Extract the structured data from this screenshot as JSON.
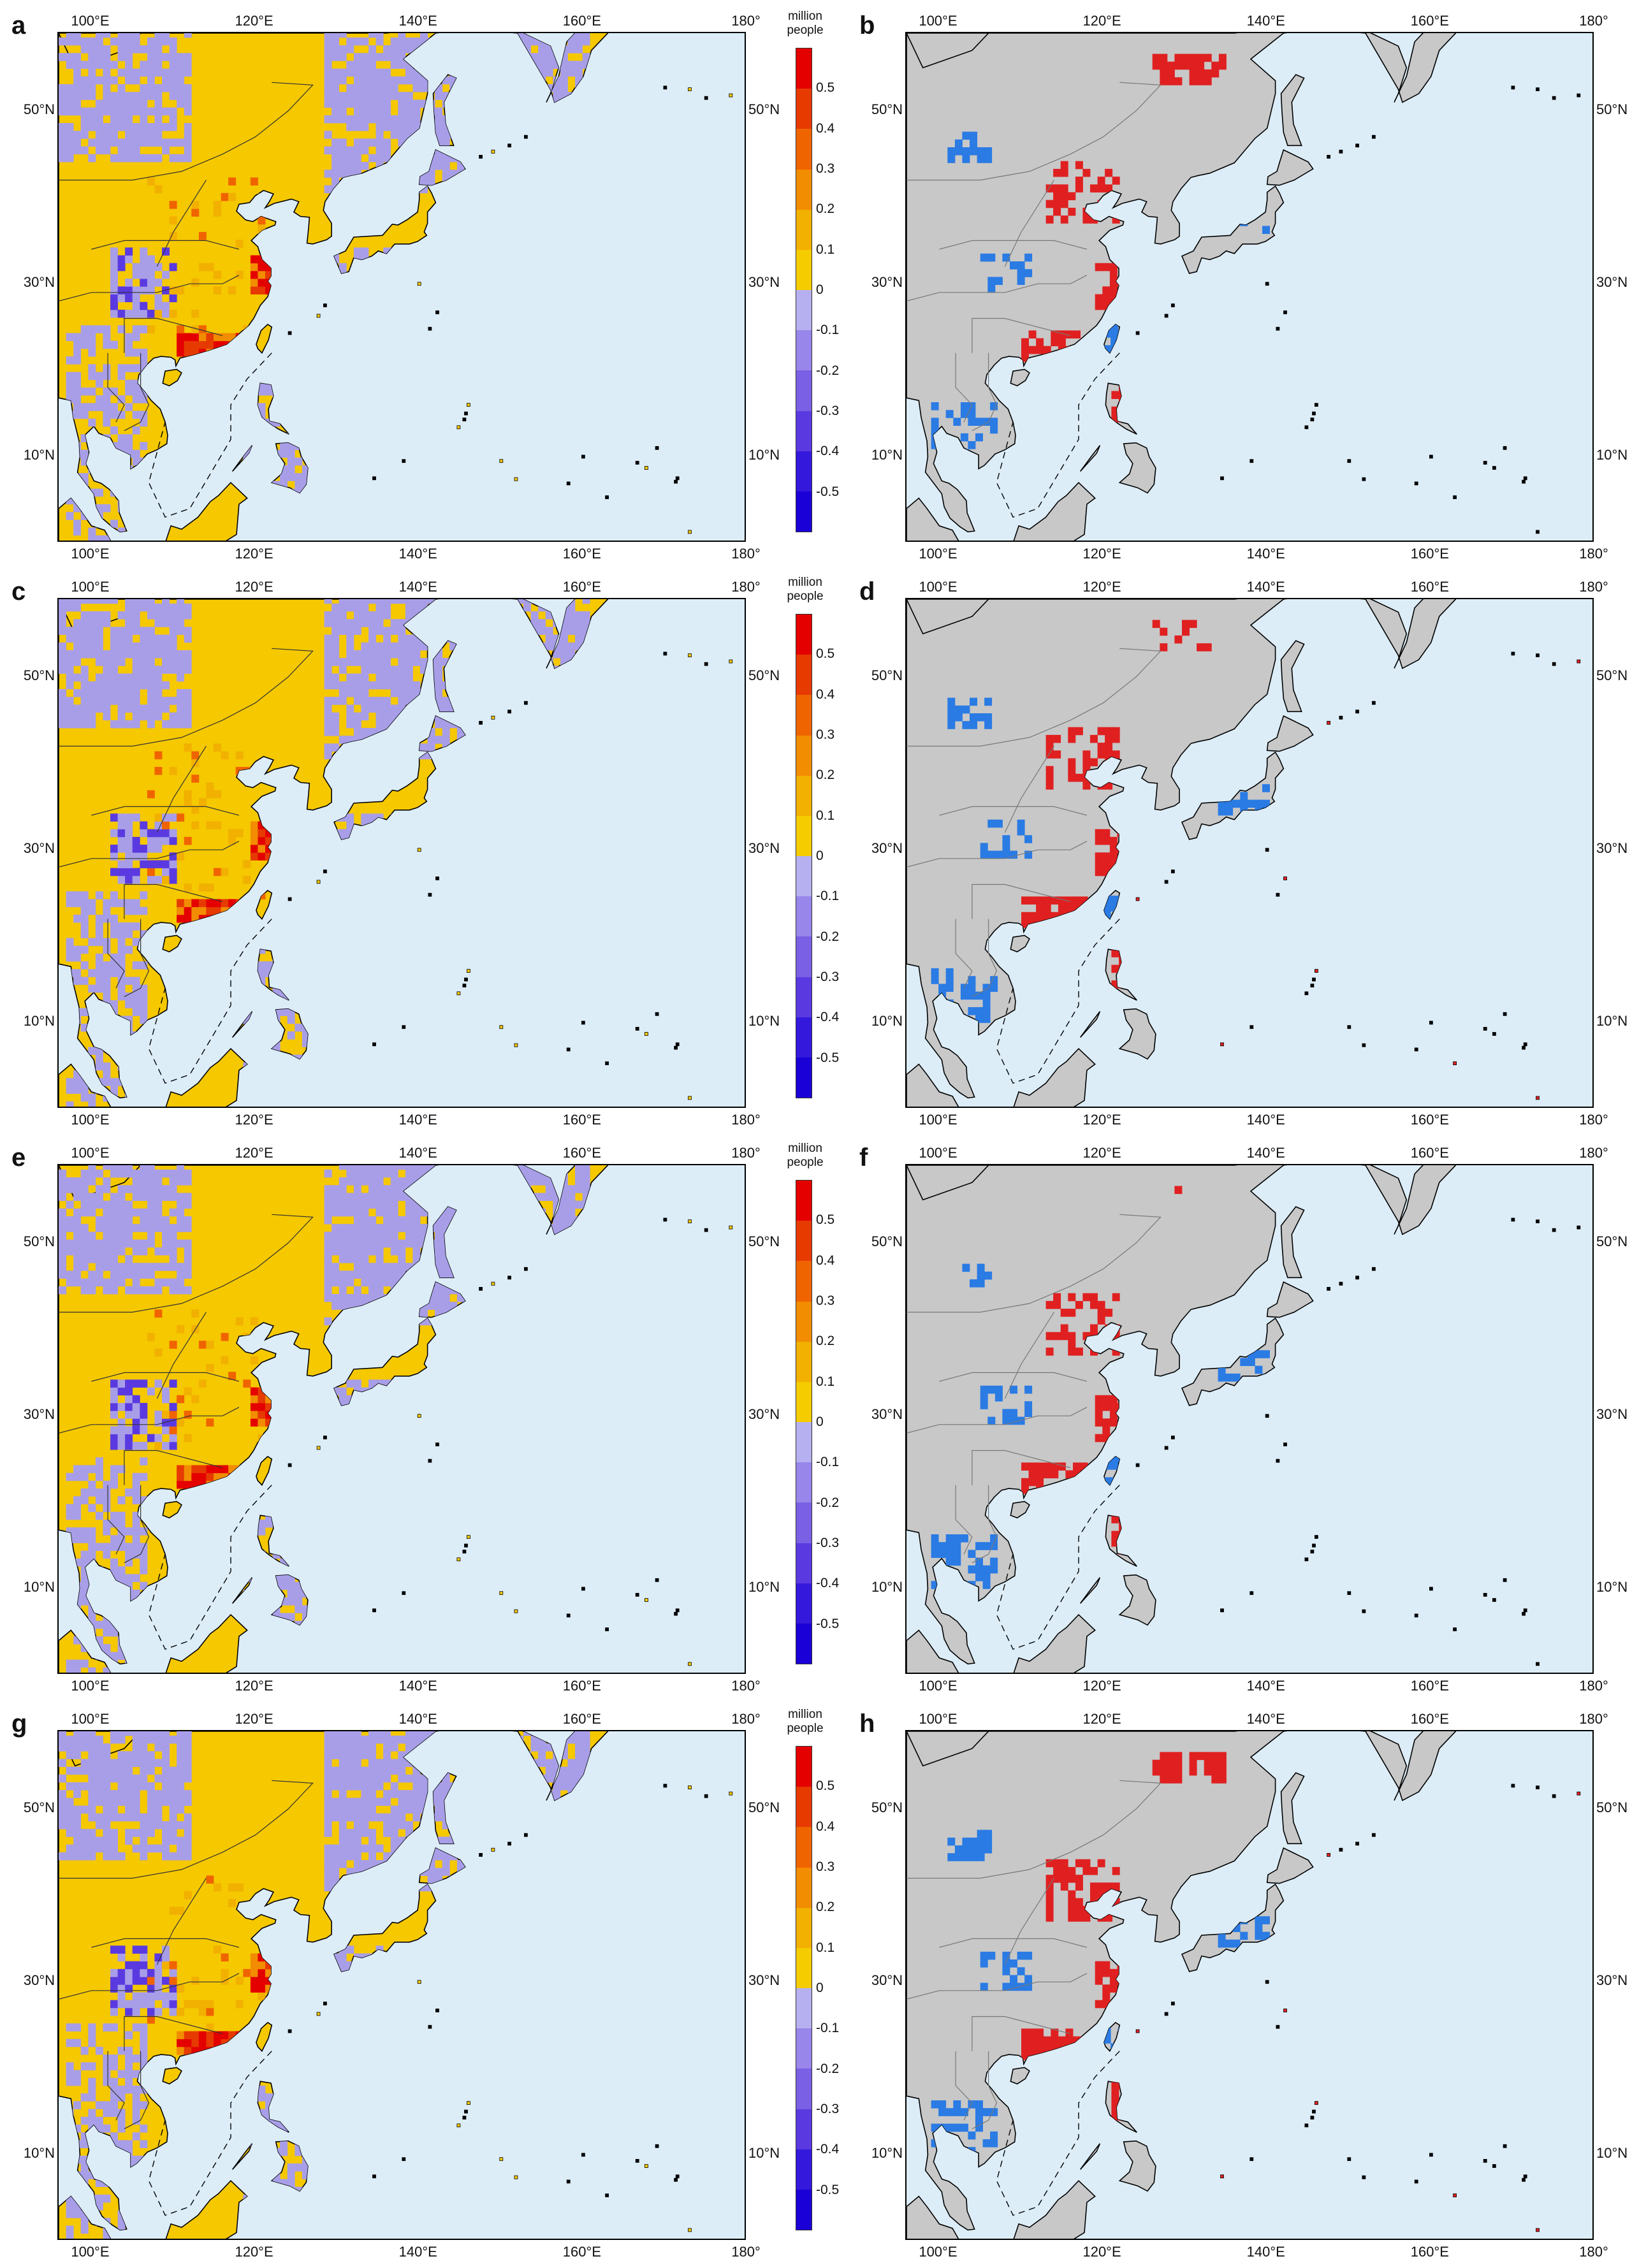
{
  "panels": [
    {
      "letter": "a",
      "type": "continuous"
    },
    {
      "letter": "b",
      "type": "significance"
    },
    {
      "letter": "c",
      "type": "continuous"
    },
    {
      "letter": "d",
      "type": "significance"
    },
    {
      "letter": "e",
      "type": "continuous"
    },
    {
      "letter": "f",
      "type": "significance"
    },
    {
      "letter": "g",
      "type": "continuous"
    },
    {
      "letter": "h",
      "type": "significance"
    }
  ],
  "axes": {
    "lon_ticks": [
      "100°E",
      "120°E",
      "140°E",
      "160°E",
      "180°"
    ],
    "lon_values": [
      100,
      120,
      140,
      160,
      180
    ],
    "lat_ticks": [
      "50°N",
      "30°N",
      "10°N"
    ],
    "lat_values": [
      50,
      30,
      10
    ],
    "lon_range": [
      96,
      180
    ],
    "lat_range": [
      0,
      59
    ]
  },
  "colorbar": {
    "title_line1": "million",
    "title_line2": "people",
    "labels": [
      "0.5",
      "0.4",
      "0.3",
      "0.2",
      "0.1",
      "0",
      "-0.1",
      "-0.2",
      "-0.3",
      "-0.4",
      "-0.5"
    ],
    "colors": [
      "#e50000",
      "#e63a00",
      "#f06400",
      "#f28c00",
      "#f2b000",
      "#f5cc00",
      "#b6b0f0",
      "#9886ea",
      "#7a60e4",
      "#5a3ae0",
      "#3419dc",
      "#1a00d6"
    ]
  },
  "map_colors": {
    "ocean": "#dcedf8",
    "land": "#c8c8c8",
    "increase": "#e02020",
    "decrease": "#2a7be4",
    "pos_low": "#f5c800",
    "neg_low": "#a89ee8"
  }
}
